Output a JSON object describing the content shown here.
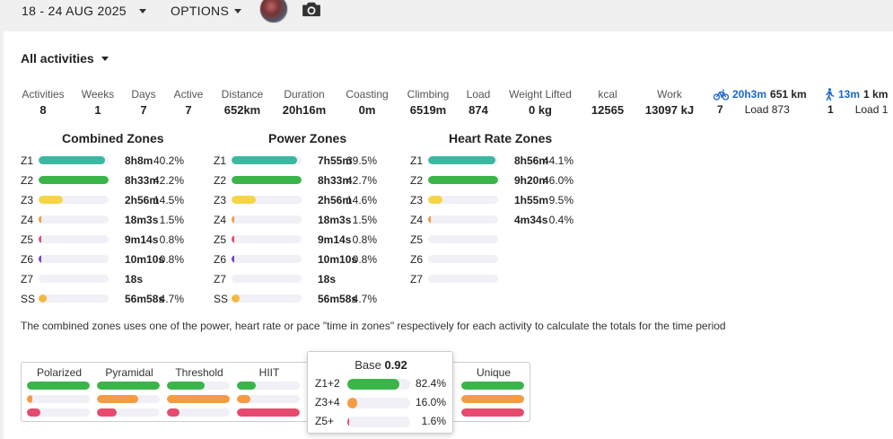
{
  "header": {
    "date_range": "18 - 24 AUG 2025",
    "options_label": "OPTIONS",
    "avatar_icon": "avatar",
    "camera_icon": "camera-icon"
  },
  "filter": {
    "label": "All activities"
  },
  "stats": [
    {
      "label": "Activities",
      "value": "8"
    },
    {
      "label": "Weeks",
      "value": "1"
    },
    {
      "label": "Days",
      "value": "7"
    },
    {
      "label": "Active",
      "value": "7"
    },
    {
      "label": "Distance",
      "value": "652km"
    },
    {
      "label": "Duration",
      "value": "20h16m"
    },
    {
      "label": "Coasting",
      "value": "0m"
    },
    {
      "label": "Climbing",
      "value": "6519m"
    },
    {
      "label": "Load",
      "value": "874"
    },
    {
      "label": "Weight Lifted",
      "value": "0 kg"
    },
    {
      "label": "kcal",
      "value": "12565"
    },
    {
      "label": "Work",
      "value": "13097 kJ"
    }
  ],
  "sports": [
    {
      "icon": "bike-icon",
      "time": "20h3m",
      "distance": "651 km",
      "count": "7",
      "load": "Load 873"
    },
    {
      "icon": "walk-icon",
      "time": "13m",
      "distance": "1 km",
      "count": "1",
      "load": "Load 1"
    }
  ],
  "zone_panels": [
    {
      "title": "Combined Zones",
      "rows": [
        {
          "zone": "Z1",
          "time": "8h8m",
          "pct": "40.2%",
          "fill": 0.95,
          "color": "#3cb8a0"
        },
        {
          "zone": "Z2",
          "time": "8h33m",
          "pct": "42.2%",
          "fill": 1.0,
          "color": "#3ab54a"
        },
        {
          "zone": "Z3",
          "time": "2h56m",
          "pct": "14.5%",
          "fill": 0.35,
          "color": "#f5d547"
        },
        {
          "zone": "Z4",
          "time": "18m3s",
          "pct": "1.5%",
          "fill": 0.04,
          "color": "#f59b42"
        },
        {
          "zone": "Z5",
          "time": "9m14s",
          "pct": "0.8%",
          "fill": 0.02,
          "color": "#e64a6e"
        },
        {
          "zone": "Z6",
          "time": "10m10s",
          "pct": "0.8%",
          "fill": 0.02,
          "color": "#6e4ac6"
        },
        {
          "zone": "Z7",
          "time": "18s",
          "pct": "",
          "fill": 0.0,
          "color": "#333333"
        },
        {
          "zone": "SS",
          "time": "56m58s",
          "pct": "4.7%",
          "fill": 0.11,
          "color": "#f5b842"
        }
      ]
    },
    {
      "title": "Power Zones",
      "rows": [
        {
          "zone": "Z1",
          "time": "7h55m",
          "pct": "39.5%",
          "fill": 0.93,
          "color": "#3cb8a0"
        },
        {
          "zone": "Z2",
          "time": "8h33m",
          "pct": "42.7%",
          "fill": 1.0,
          "color": "#3ab54a"
        },
        {
          "zone": "Z3",
          "time": "2h56m",
          "pct": "14.6%",
          "fill": 0.35,
          "color": "#f5d547"
        },
        {
          "zone": "Z4",
          "time": "18m3s",
          "pct": "1.5%",
          "fill": 0.04,
          "color": "#f59b42"
        },
        {
          "zone": "Z5",
          "time": "9m14s",
          "pct": "0.8%",
          "fill": 0.02,
          "color": "#e64a6e"
        },
        {
          "zone": "Z6",
          "time": "10m10s",
          "pct": "0.8%",
          "fill": 0.02,
          "color": "#6e4ac6"
        },
        {
          "zone": "Z7",
          "time": "18s",
          "pct": "",
          "fill": 0.0,
          "color": "#333333"
        },
        {
          "zone": "SS",
          "time": "56m58s",
          "pct": "4.7%",
          "fill": 0.11,
          "color": "#f5b842"
        }
      ]
    },
    {
      "title": "Heart Rate Zones",
      "rows": [
        {
          "zone": "Z1",
          "time": "8h56m",
          "pct": "44.1%",
          "fill": 0.96,
          "color": "#3cb8a0"
        },
        {
          "zone": "Z2",
          "time": "9h20m",
          "pct": "46.0%",
          "fill": 1.0,
          "color": "#3ab54a"
        },
        {
          "zone": "Z3",
          "time": "1h55m",
          "pct": "9.5%",
          "fill": 0.2,
          "color": "#f5d547"
        },
        {
          "zone": "Z4",
          "time": "4m34s",
          "pct": "0.4%",
          "fill": 0.01,
          "color": "#f59b42"
        },
        {
          "zone": "Z5",
          "time": "",
          "pct": "",
          "fill": 0.0,
          "color": "#e64a6e"
        },
        {
          "zone": "Z6",
          "time": "",
          "pct": "",
          "fill": 0.0,
          "color": "#6e4ac6"
        },
        {
          "zone": "Z7",
          "time": "",
          "pct": "",
          "fill": 0.0,
          "color": "#333333"
        }
      ]
    }
  ],
  "note": "The combined zones uses one of the power, heart rate or pace \"time in zones\" respectively for each activity to calculate the totals for the time period",
  "distribution": [
    {
      "title": "Polarized",
      "bars": [
        {
          "fill": 1.0,
          "color": "#3ab54a"
        },
        {
          "fill": 0.08,
          "color": "#f59b42"
        },
        {
          "fill": 0.22,
          "color": "#e64a6e"
        }
      ]
    },
    {
      "title": "Pyramidal",
      "bars": [
        {
          "fill": 1.0,
          "color": "#3ab54a"
        },
        {
          "fill": 0.65,
          "color": "#f59b42"
        },
        {
          "fill": 0.32,
          "color": "#e64a6e"
        }
      ]
    },
    {
      "title": "Threshold",
      "bars": [
        {
          "fill": 0.6,
          "color": "#3ab54a"
        },
        {
          "fill": 1.0,
          "color": "#f59b42"
        },
        {
          "fill": 0.2,
          "color": "#e64a6e"
        }
      ]
    },
    {
      "title": "HIIT",
      "bars": [
        {
          "fill": 0.3,
          "color": "#3ab54a"
        },
        {
          "fill": 0.22,
          "color": "#f59b42"
        },
        {
          "fill": 1.0,
          "color": "#e64a6e"
        }
      ]
    },
    {
      "title": "Unique",
      "bars": [
        {
          "fill": 1.0,
          "color": "#3ab54a"
        },
        {
          "fill": 1.0,
          "color": "#f59b42"
        },
        {
          "fill": 1.0,
          "color": "#e64a6e"
        }
      ]
    }
  ],
  "tooltip": {
    "title_prefix": "Base",
    "title_value": "0.92",
    "rows": [
      {
        "key": "Z1+2",
        "value": "82.4%",
        "fill": 0.824,
        "color": "#3ab54a"
      },
      {
        "key": "Z3+4",
        "value": "16.0%",
        "fill": 0.16,
        "color": "#f59b42"
      },
      {
        "key": "Z5+",
        "value": "1.6%",
        "fill": 0.016,
        "color": "#e64a6e"
      }
    ]
  }
}
